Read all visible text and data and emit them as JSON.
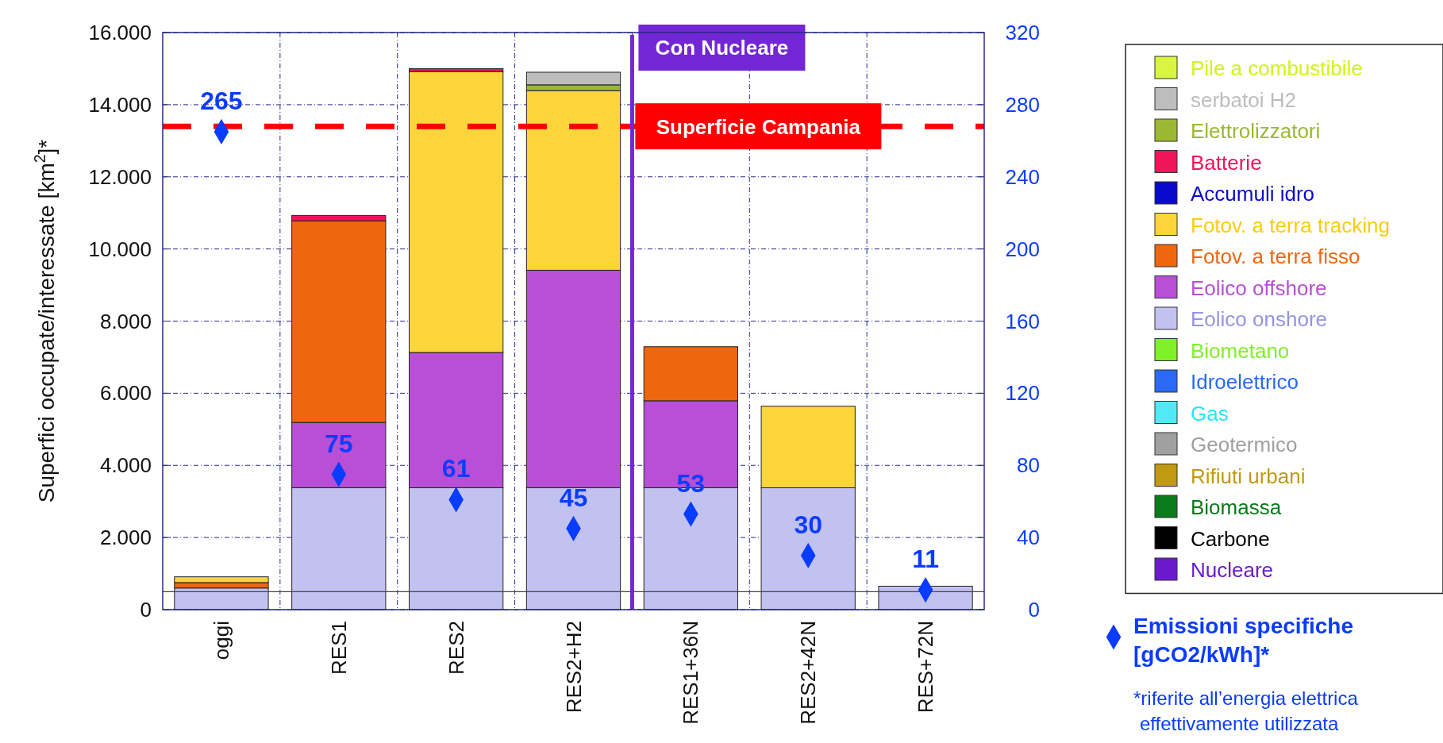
{
  "chart_data": {
    "type": "bar",
    "stacked": true,
    "ylabel": "Superfici occupate/interessate [km$^{2}$]*",
    "categories": [
      "oggi",
      "RES1",
      "RES2",
      "RES2+H2",
      "RES1+36N",
      "RES2+42N",
      "RES+72N"
    ],
    "ylim": [
      0,
      16000
    ],
    "yticks": [
      {
        "value": 0,
        "label": "0"
      },
      {
        "value": 2000,
        "label": "2.000"
      },
      {
        "value": 4000,
        "label": "4.000"
      },
      {
        "value": 6000,
        "label": "6.000"
      },
      {
        "value": 8000,
        "label": "8.000"
      },
      {
        "value": 10000,
        "label": "10.000"
      },
      {
        "value": 12000,
        "label": "12.000"
      },
      {
        "value": 14000,
        "label": "14.000"
      },
      {
        "value": 16000,
        "label": "16.000"
      }
    ],
    "y2lim": [
      0,
      320
    ],
    "y2ticks": [
      0,
      40,
      80,
      120,
      160,
      200,
      240,
      280,
      320
    ],
    "grid": true,
    "legend": "right",
    "series": [
      {
        "name": "Nucleare",
        "color": "#6a1acc",
        "values": [
          0,
          0,
          0,
          0,
          0,
          0,
          0
        ]
      },
      {
        "name": "Carbone",
        "color": "#000000",
        "values": [
          0,
          0,
          0,
          0,
          0,
          0,
          0
        ]
      },
      {
        "name": "Biomassa",
        "color": "#0a7a1a",
        "values": [
          0,
          0,
          0,
          0,
          0,
          0,
          0
        ]
      },
      {
        "name": "Rifiuti urbani",
        "color": "#c09a10",
        "values": [
          0,
          0,
          0,
          0,
          0,
          0,
          0
        ]
      },
      {
        "name": "Geotermico",
        "color": "#a0a0a0",
        "values": [
          0,
          0,
          0,
          0,
          0,
          0,
          0
        ]
      },
      {
        "name": "Gas",
        "color": "#50eaf5",
        "values": [
          0,
          0,
          0,
          0,
          0,
          0,
          0
        ]
      },
      {
        "name": "Idroelettrico",
        "color": "#2a6af5",
        "values": [
          0,
          0,
          0,
          0,
          0,
          0,
          0
        ]
      },
      {
        "name": "Biometano",
        "color": "#80f028",
        "values": [
          0,
          0,
          0,
          0,
          0,
          0,
          0
        ]
      },
      {
        "name": "Eolico onshore",
        "color": "#c2c2f0",
        "values": [
          600,
          3380,
          3380,
          3380,
          3380,
          3380,
          650
        ]
      },
      {
        "name": "Eolico offshore",
        "color": "#b84fd6",
        "values": [
          0,
          1810,
          3750,
          6030,
          2410,
          0,
          0
        ]
      },
      {
        "name": "Fotov. a terra  fisso",
        "color": "#ee6610",
        "values": [
          150,
          5590,
          0,
          0,
          1500,
          0,
          0
        ]
      },
      {
        "name": "Fotov. a terra tracking",
        "color": "#fcd53a",
        "values": [
          160,
          0,
          7790,
          4980,
          0,
          2260,
          0
        ]
      },
      {
        "name": "Accumuli idro",
        "color": "#0a0acc",
        "values": [
          0,
          0,
          0,
          0,
          0,
          0,
          0
        ]
      },
      {
        "name": "Batterie",
        "color": "#f0145a",
        "values": [
          0,
          150,
          80,
          0,
          0,
          0,
          0
        ]
      },
      {
        "name": "Elettrolizzatori",
        "color": "#9ab832",
        "values": [
          0,
          0,
          0,
          160,
          0,
          0,
          0
        ]
      },
      {
        "name": "serbatoi H2",
        "color": "#bdbdbd",
        "values": [
          0,
          0,
          0,
          350,
          0,
          0,
          0
        ]
      },
      {
        "name": "Pile a combustibile",
        "color": "#d9f542",
        "values": [
          0,
          0,
          0,
          0,
          0,
          0,
          0
        ]
      },
      {
        "name": "Emissioni specifiche [gCO2/kWh]*",
        "type": "scatter",
        "axis": "y2",
        "marker": "diamond",
        "color": "#0a3cff",
        "x": [
          "oggi",
          "RES1",
          "RES2",
          "RES2+H2",
          "RES1+36N",
          "RES2+42N",
          "RES+72N"
        ],
        "values": [
          265,
          75,
          61,
          45,
          53,
          30,
          11
        ],
        "value_labels": [
          "265",
          "75",
          "61",
          "45",
          "53",
          "30",
          "11"
        ]
      }
    ],
    "ref_lines": [
      {
        "axis": "y",
        "value": 13400,
        "label": "Superficie Campania",
        "color": "#ff0000",
        "line_style": "dashed"
      },
      {
        "axis": "y",
        "value": 500,
        "color": "#444444"
      },
      {
        "axis": "x",
        "value": "RES1+36N",
        "label": "Con Nucleare",
        "color": "#7326d6"
      }
    ],
    "annotations": [
      "*riferite all’energia elettrica effettivamente utilizzata"
    ]
  }
}
